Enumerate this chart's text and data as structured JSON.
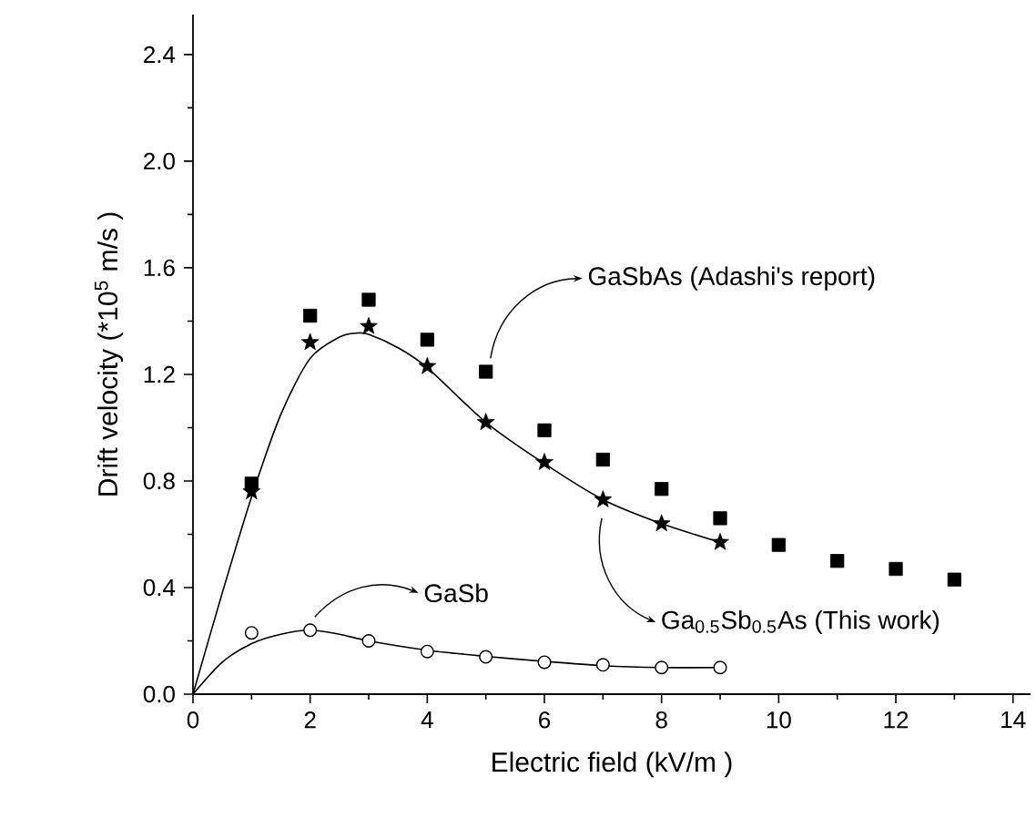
{
  "chart_data": {
    "type": "scatter",
    "xlabel": "Electric field  (kV/m )",
    "ylabel": "Drift velocity (*10$^{5}$ m/s )",
    "xlim": [
      0,
      14.3
    ],
    "ylim": [
      0,
      2.55
    ],
    "xticks": [
      0,
      2,
      4,
      6,
      8,
      10,
      12,
      14
    ],
    "yticks": [
      {
        "value": 0,
        "label": "0.0"
      },
      {
        "value": 0.4,
        "label": "0.4"
      },
      {
        "value": 0.8,
        "label": "0.8"
      },
      {
        "value": 1.2,
        "label": "1.2"
      },
      {
        "value": 1.6,
        "label": "1.6"
      },
      {
        "value": 2.0,
        "label": "2.0"
      },
      {
        "value": 2.4,
        "label": "2.4"
      }
    ],
    "series": [
      {
        "marker": "square",
        "color": "#000000",
        "x": [
          1,
          2,
          3,
          4,
          5,
          6,
          7,
          8,
          9,
          10,
          11,
          12,
          13
        ],
        "values": [
          0.79,
          1.42,
          1.48,
          1.33,
          1.21,
          0.99,
          0.88,
          0.77,
          0.66,
          0.56,
          0.5,
          0.47,
          0.43
        ]
      },
      {
        "marker": "star",
        "color": "#000000",
        "x": [
          1,
          2,
          3,
          4,
          5,
          6,
          7,
          8,
          9
        ],
        "values": [
          0.76,
          1.32,
          1.38,
          1.23,
          1.02,
          0.87,
          0.73,
          0.64,
          0.57
        ]
      },
      {
        "marker": "circle",
        "color": "#000000",
        "x": [
          1,
          2,
          3,
          4,
          5,
          6,
          7,
          8,
          9
        ],
        "values": [
          0.23,
          0.24,
          0.2,
          0.16,
          0.14,
          0.12,
          0.11,
          0.1,
          0.1
        ]
      },
      {
        "type": "line",
        "marker": "none",
        "color": "#000000",
        "x": [
          0,
          0.5,
          1,
          1.5,
          2,
          2.5,
          2.8,
          3,
          3.5,
          4,
          5,
          6,
          7,
          8,
          9
        ],
        "values": [
          0,
          0.38,
          0.74,
          1.05,
          1.26,
          1.34,
          1.355,
          1.35,
          1.3,
          1.225,
          1.02,
          0.865,
          0.73,
          0.64,
          0.57
        ]
      },
      {
        "type": "line",
        "marker": "none",
        "color": "#000000",
        "x": [
          0,
          0.5,
          1,
          1.5,
          2,
          2.5,
          3,
          4,
          5,
          6,
          7,
          8,
          9
        ],
        "values": [
          0,
          0.12,
          0.19,
          0.225,
          0.24,
          0.225,
          0.2,
          0.165,
          0.142,
          0.123,
          0.107,
          0.1,
          0.1
        ]
      }
    ],
    "annotations": [
      {
        "text": "GaSbAs (Adashi's report)",
        "x": 5,
        "y": 1.21
      },
      {
        "text": "GaSb",
        "x": 2,
        "y": 0.24
      },
      "Ga$_{0.5}$Sb$_{0.5}$As (This work)"
    ]
  }
}
